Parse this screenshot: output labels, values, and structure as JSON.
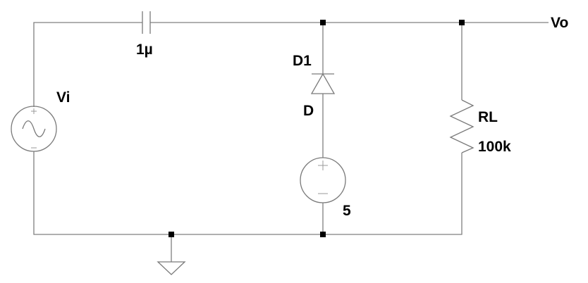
{
  "components": {
    "source": {
      "name": "Vi"
    },
    "capacitor": {
      "value": "1µ"
    },
    "diode": {
      "name": "D1",
      "model": "D"
    },
    "dc_source": {
      "value": "5"
    },
    "resistor": {
      "name": "RL",
      "value": "100k"
    }
  },
  "nets": {
    "output": "Vo"
  }
}
